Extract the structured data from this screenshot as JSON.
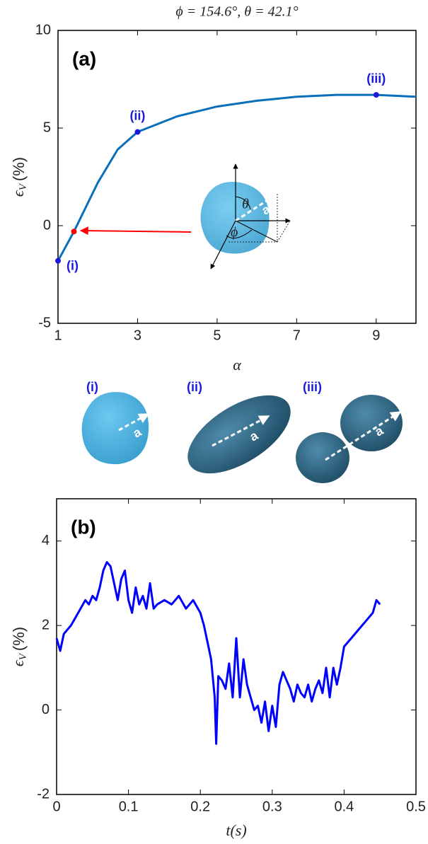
{
  "chart_data": [
    {
      "type": "line",
      "title": "ϕ = 154.6°, θ = 42.1°",
      "panel_label": "(a)",
      "x_label": "α",
      "y_label": {
        "symbol": "ϵ",
        "subscript": "V",
        "unit": "(%)"
      },
      "x": [
        1,
        1.4,
        2,
        2.5,
        3,
        4,
        5,
        6,
        7,
        8,
        9,
        10
      ],
      "values": [
        -1.8,
        -0.3,
        2.2,
        3.9,
        4.8,
        5.6,
        6.1,
        6.4,
        6.6,
        6.7,
        6.7,
        6.6
      ],
      "color": "#0a6fba",
      "points": [
        {
          "x": 1,
          "y": -1.8,
          "label": "(i)",
          "color": "#1a1adf"
        },
        {
          "x": 1.4,
          "y": -0.3,
          "color": "#ff0000"
        },
        {
          "x": 3,
          "y": 4.8,
          "label": "(ii)",
          "color": "#1a1adf"
        },
        {
          "x": 9,
          "y": 6.7,
          "label": "(iii)",
          "color": "#1a1adf"
        }
      ],
      "xlim": [
        1,
        10
      ],
      "xticks": [
        1,
        3,
        5,
        7,
        9
      ],
      "ylim": [
        -5,
        10
      ],
      "yticks": [
        -5,
        0,
        5,
        10
      ],
      "inset_labels": {
        "theta": "θ",
        "phi": "ϕ",
        "vector": "a"
      },
      "shape_labels": [
        "(i)",
        "(ii)",
        "(iii)"
      ]
    },
    {
      "type": "line",
      "panel_label": "(b)",
      "x_label": "t(s)",
      "y_label": {
        "symbol": "ϵ",
        "subscript": "V",
        "unit": "(%)"
      },
      "x": [
        0,
        0.005,
        0.01,
        0.015,
        0.02,
        0.03,
        0.04,
        0.045,
        0.05,
        0.055,
        0.06,
        0.065,
        0.07,
        0.075,
        0.08,
        0.085,
        0.09,
        0.095,
        0.1,
        0.105,
        0.11,
        0.115,
        0.12,
        0.125,
        0.13,
        0.135,
        0.14,
        0.15,
        0.16,
        0.17,
        0.18,
        0.19,
        0.2,
        0.205,
        0.21,
        0.215,
        0.22,
        0.222,
        0.225,
        0.23,
        0.235,
        0.24,
        0.245,
        0.25,
        0.255,
        0.26,
        0.265,
        0.27,
        0.275,
        0.28,
        0.285,
        0.29,
        0.295,
        0.3,
        0.305,
        0.31,
        0.315,
        0.32,
        0.325,
        0.33,
        0.335,
        0.34,
        0.345,
        0.35,
        0.355,
        0.36,
        0.365,
        0.37,
        0.375,
        0.38,
        0.385,
        0.39,
        0.395,
        0.4,
        0.41,
        0.42,
        0.43,
        0.44,
        0.445,
        0.45
      ],
      "values": [
        1.7,
        1.4,
        1.8,
        1.9,
        2.0,
        2.3,
        2.6,
        2.5,
        2.7,
        2.6,
        2.9,
        3.3,
        3.5,
        3.4,
        3.0,
        2.6,
        3.1,
        3.3,
        2.6,
        2.3,
        2.9,
        2.5,
        2.7,
        2.4,
        3.0,
        2.4,
        2.5,
        2.6,
        2.5,
        2.7,
        2.4,
        2.6,
        2.3,
        2.0,
        1.6,
        1.2,
        0.3,
        -0.8,
        0.8,
        0.7,
        0.5,
        1.1,
        0.3,
        1.7,
        0.3,
        1.2,
        0.6,
        0.3,
        0.0,
        0.1,
        -0.3,
        0.2,
        -0.5,
        0.1,
        -0.4,
        0.6,
        0.9,
        0.7,
        0.5,
        0.2,
        0.6,
        0.4,
        0.3,
        0.6,
        0.2,
        0.5,
        0.7,
        0.4,
        1.0,
        0.3,
        1.0,
        0.6,
        1.0,
        1.5,
        1.7,
        1.9,
        2.1,
        2.3,
        2.6,
        2.5
      ],
      "color": "#0000ff",
      "xlim": [
        0,
        0.5
      ],
      "xticks": [
        0,
        0.1,
        0.2,
        0.3,
        0.4,
        0.5
      ],
      "ylim": [
        -2,
        5
      ],
      "yticks": [
        -2,
        0,
        2,
        4
      ]
    }
  ]
}
